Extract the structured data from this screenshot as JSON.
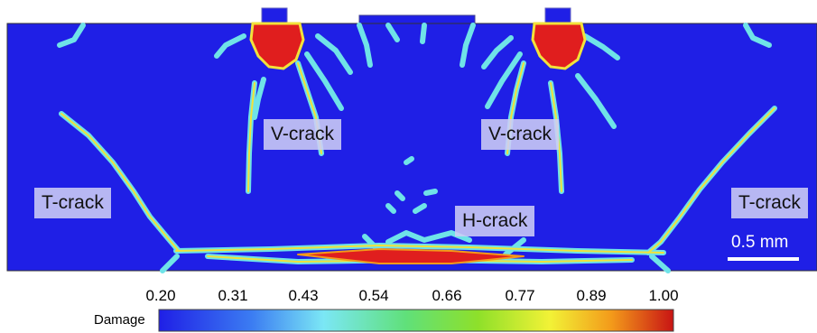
{
  "labels": {
    "v_crack_left": "V-crack",
    "v_crack_right": "V-crack",
    "t_crack_left": "T-crack",
    "t_crack_right": "T-crack",
    "h_crack": "H-crack"
  },
  "scale_bar": {
    "text": "0.5 mm"
  },
  "colorbar": {
    "title": "Damage",
    "ticks": [
      "0.20",
      "0.31",
      "0.43",
      "0.54",
      "0.66",
      "0.77",
      "0.89",
      "1.00"
    ],
    "colors": [
      "#1f1fe6",
      "#3b7cf2",
      "#7be7f5",
      "#60e07a",
      "#8ee02a",
      "#f2f236",
      "#f39a1a",
      "#c81414"
    ]
  },
  "colors": {
    "domain_background": "#1f1fe6",
    "crack_edge": "#6fe3e8",
    "crack_core": "#f2e23a",
    "damage_high": "#e01e1e"
  }
}
